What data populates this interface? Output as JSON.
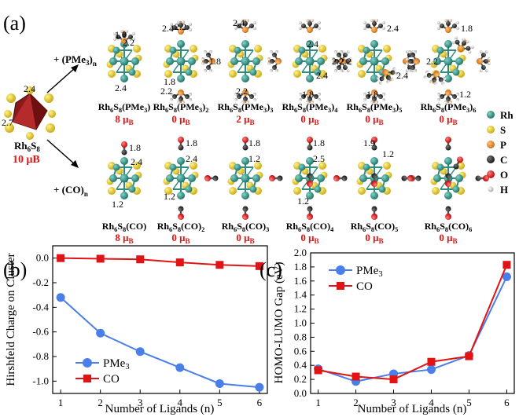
{
  "panel_a": {
    "label": "(a)",
    "parent": {
      "formula": "Rh",
      "sub1": "6",
      "mid": "S",
      "sub2": "8",
      "moment": "10 μB",
      "dist1": "2.4",
      "dist2": "2.7"
    },
    "pme3_arrow": {
      "prefix": "+ (PMe",
      "sub": "3",
      "suffix": ")",
      "n": "n"
    },
    "co_arrow": {
      "text": "+ (CO)",
      "n": "n"
    },
    "pme3_row": [
      {
        "name": "Rh6S8(PMe3)",
        "moment": "8 μB"
      },
      {
        "name": "Rh6S8(PMe3)2",
        "moment": "0 μB"
      },
      {
        "name": "Rh6S8(PMe3)3",
        "moment": "2 μB"
      },
      {
        "name": "Rh6S8(PMe3)4",
        "moment": "0 μB"
      },
      {
        "name": "Rh6S8(PMe3)5",
        "moment": "0 μB"
      },
      {
        "name": "Rh6S8(PMe3)6",
        "moment": "0 μB"
      }
    ],
    "co_row": [
      {
        "name": "Rh6S8(CO)",
        "moment": "8 μB"
      },
      {
        "name": "Rh6S8(CO)2",
        "moment": "0 μB"
      },
      {
        "name": "Rh6S8(CO)3",
        "moment": "0 μB"
      },
      {
        "name": "Rh6S8(CO)4",
        "moment": "0 μB"
      },
      {
        "name": "Rh6S8(CO)5",
        "moment": "0 μB"
      },
      {
        "name": "Rh6S8(CO)6",
        "moment": "0 μB"
      }
    ],
    "distance_labels": [
      "1.8",
      "2.2",
      "2.4",
      "2.4",
      "2.2",
      "1.8",
      "2.2",
      "1.8",
      "2.4",
      "2.2",
      "2.4",
      "2.4",
      "2.2",
      "1.8",
      "2.4",
      "2.2",
      "2.4",
      "1.8",
      "2.2",
      "1.8",
      "1.2",
      "1.8",
      "2.4",
      "1.2",
      "1.8",
      "2.4",
      "1.2",
      "1.8",
      "1.2",
      "1.8",
      "2.5",
      "1.2",
      "1.9",
      "1.2"
    ],
    "legend": [
      {
        "label": "Rh",
        "color": "#2e8b80"
      },
      {
        "label": "S",
        "color": "#e6c619"
      },
      {
        "label": "P",
        "color": "#e88a2a"
      },
      {
        "label": "C",
        "color": "#2a2a2a"
      },
      {
        "label": "O",
        "color": "#e02020"
      },
      {
        "label": "H",
        "color": "#d8d8d8"
      }
    ]
  },
  "chart_data": [
    {
      "type": "line",
      "panel": "(b)",
      "xlabel": "Number of Ligands (n)",
      "ylabel": "Hirshfeld Charge on Cluster",
      "x": [
        1,
        2,
        3,
        4,
        5,
        6
      ],
      "xlim": [
        0.8,
        6.2
      ],
      "ylim": [
        -1.1,
        0.1
      ],
      "xticks": [
        "1",
        "2",
        "3",
        "4",
        "5",
        "6"
      ],
      "yticks": [
        "-1.0",
        "-0.8",
        "-0.6",
        "-0.4",
        "-0.2",
        "0.0"
      ],
      "ytick_values": [
        -1.0,
        -0.8,
        -0.6,
        -0.4,
        -0.2,
        0.0
      ],
      "legend_position": "bottom-left",
      "series": [
        {
          "name": "PMe3",
          "color": "#4a7ee8",
          "marker": "circle",
          "values": [
            -0.32,
            -0.61,
            -0.76,
            -0.89,
            -1.02,
            -1.05
          ]
        },
        {
          "name": "CO",
          "color": "#e01414",
          "marker": "square",
          "values": [
            0.0,
            -0.005,
            -0.01,
            -0.035,
            -0.055,
            -0.065
          ]
        }
      ]
    },
    {
      "type": "line",
      "panel": "(c)",
      "xlabel": "Number of Ligands (n)",
      "ylabel": "HOMO-LUMO Gap (eV)",
      "x": [
        1,
        2,
        3,
        4,
        5,
        6
      ],
      "xlim": [
        0.8,
        6.2
      ],
      "ylim": [
        0.0,
        2.0
      ],
      "xticks": [
        "1",
        "2",
        "3",
        "4",
        "5",
        "6"
      ],
      "yticks": [
        "0.0",
        "0.2",
        "0.4",
        "0.6",
        "0.8",
        "1.0",
        "1.2",
        "1.4",
        "1.6",
        "1.8",
        "2.0"
      ],
      "ytick_values": [
        0.0,
        0.2,
        0.4,
        0.6,
        0.8,
        1.0,
        1.2,
        1.4,
        1.6,
        1.8,
        2.0
      ],
      "legend_position": "top-left",
      "series": [
        {
          "name": "PMe3",
          "color": "#4a7ee8",
          "marker": "circle",
          "values": [
            0.35,
            0.17,
            0.28,
            0.34,
            0.54,
            1.66
          ]
        },
        {
          "name": "CO",
          "color": "#e01414",
          "marker": "square",
          "values": [
            0.33,
            0.24,
            0.2,
            0.45,
            0.53,
            1.83
          ]
        }
      ]
    }
  ]
}
